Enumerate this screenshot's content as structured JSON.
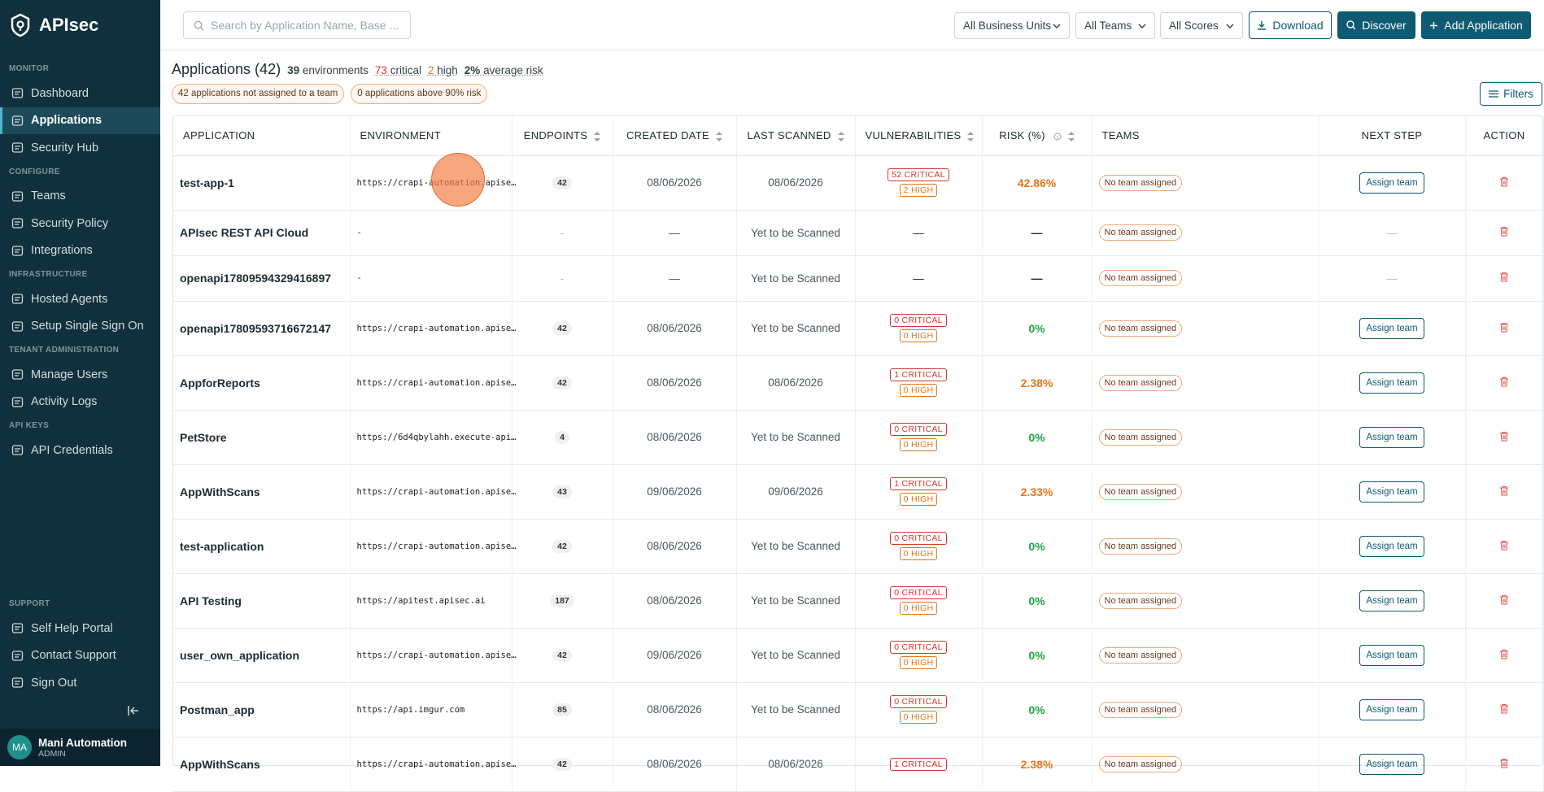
{
  "sidebar": {
    "brand": "APIsec",
    "sections": [
      {
        "label": "MONITOR",
        "items": [
          "Dashboard",
          "Applications",
          "Security Hub"
        ]
      },
      {
        "label": "CONFIGURE",
        "items": [
          "Teams",
          "Security Policy",
          "Integrations"
        ]
      },
      {
        "label": "INFRASTRUCTURE",
        "items": [
          "Hosted Agents",
          "Setup Single Sign On"
        ]
      },
      {
        "label": "TENANT ADMINISTRATION",
        "items": [
          "Manage Users",
          "Activity Logs"
        ]
      },
      {
        "label": "API KEYS",
        "items": [
          "API Credentials"
        ]
      }
    ],
    "support": {
      "label": "SUPPORT",
      "items": [
        "Self Help Portal",
        "Contact Support",
        "Sign Out"
      ]
    },
    "user": {
      "initials": "MA",
      "name": "Mani Automation",
      "role": "ADMIN"
    }
  },
  "header": {
    "search_placeholder": "Search by Application Name, Base ...",
    "dropdowns": [
      "All Business Units",
      "All Teams",
      "All Scores"
    ],
    "buttons": [
      "Download",
      "Discover",
      "Add Application"
    ]
  },
  "summary": {
    "title": "Applications (42)",
    "environments_count": "39",
    "environments_label": "environments",
    "critical_count": "73",
    "critical_label": "critical",
    "high_count": "2",
    "high_label": "high",
    "risk_value": "2%",
    "risk_label": "average risk"
  },
  "chips": [
    "42 applications not assigned to a team",
    "0 applications above 90% risk"
  ],
  "filters": "Filters",
  "table": {
    "columns": [
      "APPLICATION",
      "ENVIRONMENT",
      "ENDPOINTS",
      "CREATED DATE",
      "LAST SCANNED",
      "VULNERABILITIES",
      "RISK (%)",
      "TEAMS",
      "NEXT STEP",
      "ACTION"
    ],
    "rows": [
      {
        "application": "test-app-1",
        "environment": "https://crapi-automation.apise…",
        "endpoints": 42,
        "created": "08/06/2026",
        "last_scanned": "08/06/2026",
        "vulnerabilities": [
          "52 CRITICAL",
          "2 HIGH"
        ],
        "risk": "42.86%",
        "team": "No team assigned",
        "next_step_button": "Assign team"
      },
      {
        "application": "APIsec REST API Cloud",
        "environment": "-",
        "endpoints": "-",
        "created": "—",
        "last_scanned": "Yet to be Scanned",
        "vulnerabilities": "—",
        "risk": "—",
        "team": "No team assigned",
        "next_step": "—"
      },
      {
        "application": "openapi17809594329416897",
        "environment": "-",
        "endpoints": "-",
        "created": "—",
        "last_scanned": "Yet to be Scanned",
        "vulnerabilities": "—",
        "risk": "—",
        "team": "No team assigned",
        "next_step": "—"
      },
      {
        "application": "openapi17809593716672147",
        "environment": "https://crapi-automation.apise…",
        "endpoints": 42,
        "created": "08/06/2026",
        "last_scanned": "Yet to be Scanned",
        "vulnerabilities": [
          "0 CRITICAL",
          "0 HIGH"
        ],
        "risk": "0%",
        "team": "No team assigned",
        "next_step_button": "Assign team"
      },
      {
        "application": "AppforReports",
        "environment": "https://crapi-automation.apise…",
        "endpoints": 42,
        "created": "08/06/2026",
        "last_scanned": "08/06/2026",
        "vulnerabilities": [
          "1 CRITICAL",
          "0 HIGH"
        ],
        "risk": "2.38%",
        "team": "No team assigned",
        "next_step_button": "Assign team"
      },
      {
        "application": "PetStore",
        "environment": "https://6d4qbylahh.execute-api…",
        "endpoints": 4,
        "created": "08/06/2026",
        "last_scanned": "Yet to be Scanned",
        "vulnerabilities": [
          "0 CRITICAL",
          "0 HIGH"
        ],
        "risk": "0%",
        "team": "No team assigned",
        "next_step_button": "Assign team"
      },
      {
        "application": "AppWithScans",
        "environment": "https://crapi-automation.apise…",
        "endpoints": 43,
        "created": "09/06/2026",
        "last_scanned": "09/06/2026",
        "vulnerabilities": [
          "1 CRITICAL",
          "0 HIGH"
        ],
        "risk": "2.33%",
        "team": "No team assigned",
        "next_step_button": "Assign team"
      },
      {
        "application": "test-application",
        "environment": "https://crapi-automation.apise…",
        "endpoints": 42,
        "created": "08/06/2026",
        "last_scanned": "Yet to be Scanned",
        "vulnerabilities": [
          "0 CRITICAL",
          "0 HIGH"
        ],
        "risk": "0%",
        "team": "No team assigned",
        "next_step_button": "Assign team"
      },
      {
        "application": "API Testing",
        "environment": "https://apitest.apisec.ai",
        "endpoints": 187,
        "created": "08/06/2026",
        "last_scanned": "Yet to be Scanned",
        "vulnerabilities": [
          "0 CRITICAL",
          "0 HIGH"
        ],
        "risk": "0%",
        "team": "No team assigned",
        "next_step_button": "Assign team"
      },
      {
        "application": "user_own_application",
        "environment": "https://crapi-automation.apise…",
        "endpoints": 42,
        "created": "09/06/2026",
        "last_scanned": "Yet to be Scanned",
        "vulnerabilities": [
          "0 CRITICAL",
          "0 HIGH"
        ],
        "risk": "0%",
        "team": "No team assigned",
        "next_step_button": "Assign team"
      },
      {
        "application": "Postman_app",
        "environment": "https://api.imgur.com",
        "endpoints": 85,
        "created": "08/06/2026",
        "last_scanned": "Yet to be Scanned",
        "vulnerabilities": [
          "0 CRITICAL",
          "0 HIGH"
        ],
        "risk": "0%",
        "team": "No team assigned",
        "next_step_button": "Assign team"
      },
      {
        "application": "AppWithScans",
        "environment": "https://crapi-automation.apise…",
        "endpoints": 42,
        "created": "08/06/2026",
        "last_scanned": "08/06/2026",
        "vulnerabilities": [
          "1 CRITICAL"
        ],
        "risk": "2.38%",
        "team": "No team assigned",
        "next_step_button": "Assign team"
      }
    ]
  }
}
